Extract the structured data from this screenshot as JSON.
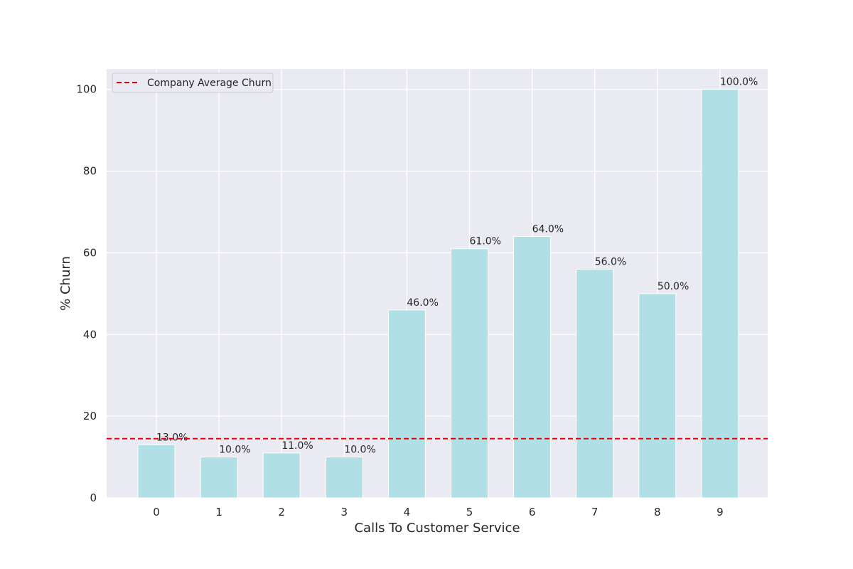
{
  "chart_data": {
    "type": "bar",
    "xlabel": "Calls To Customer Service",
    "ylabel": "% Churn",
    "categories": [
      "0",
      "1",
      "2",
      "3",
      "4",
      "5",
      "6",
      "7",
      "8",
      "9"
    ],
    "values": [
      13,
      10,
      11,
      10,
      46,
      61,
      64,
      56,
      50,
      100
    ],
    "data_labels": [
      "13.0%",
      "10.0%",
      "11.0%",
      "10.0%",
      "46.0%",
      "61.0%",
      "64.0%",
      "56.0%",
      "50.0%",
      "100.0%"
    ],
    "y_ticks": [
      0,
      20,
      40,
      60,
      80,
      100
    ],
    "ylim": [
      0,
      105
    ],
    "reference_line": {
      "label": "Company Average Churn",
      "value": 14.5,
      "color": "#e8000b",
      "style": "dashed"
    },
    "legend": {
      "position": "top-left",
      "entries": [
        "Company Average Churn"
      ]
    },
    "grid": true,
    "colors": {
      "bar": "#b0e0e6",
      "plot_background": "#eaeaf2",
      "grid": "#ffffff"
    }
  }
}
